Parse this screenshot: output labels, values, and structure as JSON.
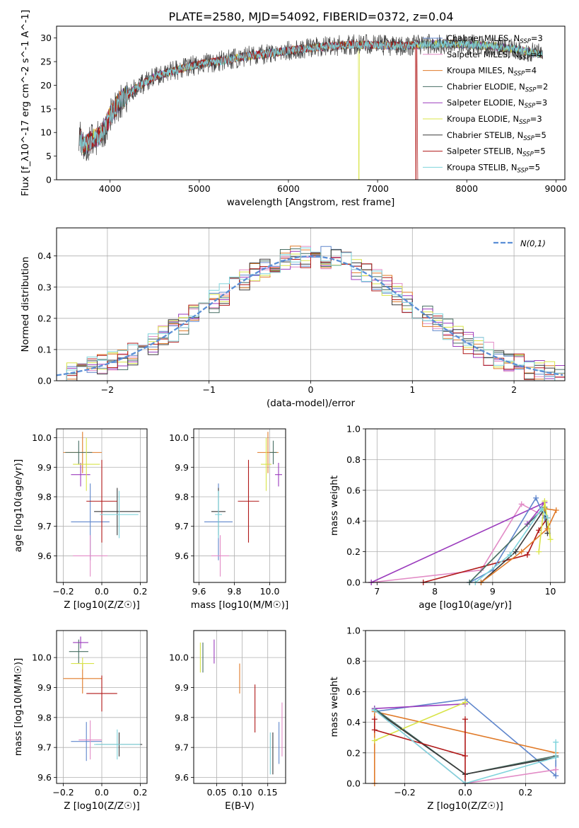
{
  "figure": {
    "title": "PLATE=2580, MJD=54092, FIBERID=0372, z=0.04"
  },
  "colors": {
    "Chabrier MILES": "#5f86cc",
    "Salpeter MILES": "#e28bc6",
    "Kroupa MILES": "#e07a28",
    "Chabrier ELODIE": "#476e63",
    "Salpeter ELODIE": "#9b3bbd",
    "Kroupa ELODIE": "#d8e448",
    "Chabrier STELIB": "#3a3a3a",
    "Salpeter STELIB": "#b01818",
    "Kroupa STELIB": "#7fd4dc",
    "normal": "#5b8fd6"
  },
  "chart_data": [
    {
      "id": "spectrum",
      "type": "line",
      "xlabel": "wavelength [Angstrom, rest frame]",
      "ylabel": "Flux [f_λ10^-17 erg cm^-2 s^-1 A^-1]",
      "xlim": [
        3400,
        9100
      ],
      "ylim": [
        0,
        32.5
      ],
      "xticks": [
        4000,
        5000,
        6000,
        7000,
        8000,
        9000
      ],
      "yticks": [
        0,
        5,
        10,
        15,
        20,
        25,
        30
      ],
      "grid": false,
      "legend_position": "top-right",
      "series": [
        {
          "name": "Chabrier MILES",
          "sub": "SSP",
          "n": 3
        },
        {
          "name": "Salpeter MILES",
          "sub": "SSP",
          "n": 4
        },
        {
          "name": "Kroupa MILES",
          "sub": "SSP",
          "n": 4
        },
        {
          "name": "Chabrier ELODIE",
          "sub": "SSP",
          "n": 2
        },
        {
          "name": "Salpeter ELODIE",
          "sub": "SSP",
          "n": 3
        },
        {
          "name": "Kroupa ELODIE",
          "sub": "SSP",
          "n": 3
        },
        {
          "name": "Chabrier STELIB",
          "sub": "SSP",
          "n": 5
        },
        {
          "name": "Salpeter STELIB",
          "sub": "SSP",
          "n": 5
        },
        {
          "name": "Kroupa STELIB",
          "sub": "SSP",
          "n": 5
        }
      ],
      "continuum": {
        "x": [
          3650,
          3700,
          3800,
          3900,
          4000,
          4100,
          4300,
          4500,
          4700,
          5000,
          5200,
          5500,
          5800,
          6000,
          6300,
          6500,
          6700,
          7000,
          7300,
          7500,
          7800,
          8200,
          8500,
          8850
        ],
        "y": [
          10,
          7,
          8.5,
          9.5,
          13.5,
          16.5,
          19.5,
          21.8,
          23,
          24.5,
          25,
          26,
          26.8,
          27.3,
          28,
          28.3,
          28.6,
          28.5,
          28.3,
          28.6,
          28.8,
          28.4,
          27.8,
          26.5
        ]
      },
      "drops": [
        {
          "series": "Kroupa ELODIE",
          "x": 6790,
          "to": 0
        },
        {
          "series": "Salpeter STELIB",
          "x": 7430,
          "to": 0
        }
      ]
    },
    {
      "id": "residuals",
      "type": "line",
      "xlabel": "(data-model)/error",
      "ylabel": "Normed distribution",
      "xlim": [
        -2.5,
        2.5
      ],
      "ylim": [
        0,
        0.49
      ],
      "xticks": [
        -2,
        -1,
        0,
        1,
        2
      ],
      "yticks": [
        0.0,
        0.1,
        0.2,
        0.3,
        0.4
      ],
      "grid": true,
      "legend_position": "top-right",
      "legend": "N(0,1)",
      "bin_width": 0.1
    },
    {
      "id": "age_vs_Z",
      "type": "scatter",
      "xlabel": "Z [log10(Z/Z☉)]",
      "ylabel": "age  [log10(age/yr)]",
      "xlim": [
        -0.235,
        0.235
      ],
      "ylim": [
        9.51,
        10.03
      ],
      "xticks": [
        -0.2,
        0.0,
        0.2
      ],
      "yticks": [
        9.6,
        9.7,
        9.8,
        9.9,
        10.0
      ],
      "grid": true,
      "points": [
        {
          "series": "Chabrier MILES",
          "x": -0.06,
          "xerr": 0.1,
          "y": 9.715,
          "yerr": 0.13
        },
        {
          "series": "Salpeter MILES",
          "x": -0.06,
          "xerr": 0.09,
          "y": 9.6,
          "yerr": 0.07
        },
        {
          "series": "Kroupa MILES",
          "x": -0.1,
          "xerr": 0.1,
          "y": 9.95,
          "yerr": 0.07
        },
        {
          "series": "Chabrier ELODIE",
          "x": -0.12,
          "xerr": 0.07,
          "y": 9.95,
          "yerr": 0.04
        },
        {
          "series": "Salpeter ELODIE",
          "x": -0.11,
          "xerr": 0.05,
          "y": 9.875,
          "yerr": 0.04
        },
        {
          "series": "Kroupa ELODIE",
          "x": -0.08,
          "xerr": 0.07,
          "y": 9.91,
          "yerr": 0.09
        },
        {
          "series": "Chabrier STELIB",
          "x": 0.08,
          "xerr": 0.12,
          "y": 9.75,
          "yerr": 0.08
        },
        {
          "series": "Salpeter STELIB",
          "x": 0.0,
          "xerr": 0.08,
          "y": 9.785,
          "yerr": 0.14
        },
        {
          "series": "Kroupa STELIB",
          "x": 0.09,
          "xerr": 0.1,
          "y": 9.74,
          "yerr": 0.08
        }
      ]
    },
    {
      "id": "age_vs_mass",
      "type": "scatter",
      "xlabel": "mass [log10(M/M☉)]",
      "ylabel": "",
      "xlim": [
        9.57,
        10.09
      ],
      "ylim": [
        9.51,
        10.03
      ],
      "xticks": [
        9.6,
        9.8,
        10.0
      ],
      "yticks": [
        9.6,
        9.7,
        9.8,
        9.9,
        10.0
      ],
      "grid": true,
      "points": [
        {
          "series": "Chabrier MILES",
          "x": 9.71,
          "xerr": 0.08,
          "y": 9.715,
          "yerr": 0.13
        },
        {
          "series": "Salpeter MILES",
          "x": 9.72,
          "xerr": 0.05,
          "y": 9.6,
          "yerr": 0.07
        },
        {
          "series": "Kroupa MILES",
          "x": 9.99,
          "xerr": 0.06,
          "y": 9.95,
          "yerr": 0.07
        },
        {
          "series": "Chabrier ELODIE",
          "x": 10.02,
          "xerr": 0.02,
          "y": 9.95,
          "yerr": 0.04
        },
        {
          "series": "Salpeter ELODIE",
          "x": 10.05,
          "xerr": 0.02,
          "y": 9.875,
          "yerr": 0.04
        },
        {
          "series": "Kroupa ELODIE",
          "x": 9.98,
          "xerr": 0.03,
          "y": 9.91,
          "yerr": 0.09
        },
        {
          "series": "Chabrier STELIB",
          "x": 9.71,
          "xerr": 0.04,
          "y": 9.75,
          "yerr": 0.08
        },
        {
          "series": "Salpeter STELIB",
          "x": 9.88,
          "xerr": 0.06,
          "y": 9.785,
          "yerr": 0.14
        },
        {
          "series": "Kroupa STELIB",
          "x": 9.71,
          "xerr": 0.02,
          "y": 9.74,
          "yerr": 0.08
        }
      ]
    },
    {
      "id": "weight_vs_age",
      "type": "line",
      "xlabel": "age  [log10(age/yr)]",
      "ylabel": "mass weight",
      "xlim": [
        6.8,
        10.25
      ],
      "ylim": [
        0,
        1.0
      ],
      "xticks": [
        7,
        8,
        9,
        10
      ],
      "yticks": [
        0.0,
        0.2,
        0.4,
        0.6,
        0.8,
        1.0
      ],
      "grid": true,
      "series": [
        {
          "name": "Salpeter MILES",
          "x": [
            6.9,
            8.8,
            9.5,
            9.95
          ],
          "y": [
            0.0,
            0.08,
            0.51,
            0.42
          ]
        },
        {
          "name": "Salpeter ELODIE",
          "x": [
            6.9,
            9.9,
            9.6
          ],
          "y": [
            0.0,
            0.52,
            0.38
          ]
        },
        {
          "name": "Salpeter STELIB",
          "x": [
            7.8,
            9.6,
            9.8,
            9.95
          ],
          "y": [
            0.0,
            0.18,
            0.34,
            0.42
          ]
        },
        {
          "name": "Chabrier MILES",
          "x": [
            8.6,
            9.0,
            9.75,
            9.9
          ],
          "y": [
            0.0,
            0.08,
            0.55,
            0.42
          ]
        },
        {
          "name": "Chabrier ELODIE",
          "x": [
            8.6,
            9.9
          ],
          "y": [
            0.0,
            0.49
          ]
        },
        {
          "name": "Chabrier STELIB",
          "x": [
            8.8,
            9.4,
            9.9,
            9.95
          ],
          "y": [
            0.0,
            0.2,
            0.48,
            0.32
          ]
        },
        {
          "name": "Kroupa MILES",
          "x": [
            8.8,
            9.5,
            9.95,
            10.1,
            9.9
          ],
          "y": [
            0.0,
            0.2,
            0.35,
            0.47,
            0.48
          ]
        },
        {
          "name": "Kroupa ELODIE",
          "x": [
            9.8,
            9.9,
            10.0,
            9.95
          ],
          "y": [
            0.2,
            0.53,
            0.28,
            0.42
          ]
        },
        {
          "name": "Kroupa STELIB",
          "x": [
            8.7,
            9.3,
            9.85,
            9.95
          ],
          "y": [
            0.0,
            0.18,
            0.48,
            0.42
          ]
        }
      ]
    },
    {
      "id": "mass_vs_Z",
      "type": "scatter",
      "xlabel": "Z [log10(Z/Z☉)]",
      "ylabel": "mass [log10(M/M☉)]",
      "xlim": [
        -0.235,
        0.235
      ],
      "ylim": [
        9.58,
        10.09
      ],
      "xticks": [
        -0.2,
        0.0,
        0.2
      ],
      "yticks": [
        9.6,
        9.7,
        9.8,
        9.9,
        10.0
      ],
      "grid": true,
      "points": [
        {
          "series": "Chabrier MILES",
          "x": -0.08,
          "xerr": 0.08,
          "y": 9.72,
          "yerr": 0.065
        },
        {
          "series": "Salpeter MILES",
          "x": -0.06,
          "xerr": 0.06,
          "y": 9.725,
          "yerr": 0.065
        },
        {
          "series": "Kroupa MILES",
          "x": -0.1,
          "xerr": 0.1,
          "y": 9.93,
          "yerr": 0.05
        },
        {
          "series": "Chabrier ELODIE",
          "x": -0.12,
          "xerr": 0.05,
          "y": 10.02,
          "yerr": 0.04
        },
        {
          "series": "Salpeter ELODIE",
          "x": -0.11,
          "xerr": 0.04,
          "y": 10.05,
          "yerr": 0.02
        },
        {
          "series": "Kroupa ELODIE",
          "x": -0.1,
          "xerr": 0.06,
          "y": 9.98,
          "yerr": 0.02
        },
        {
          "series": "Chabrier STELIB",
          "x": 0.09,
          "xerr": 0.12,
          "y": 9.71,
          "yerr": 0.04
        },
        {
          "series": "Salpeter STELIB",
          "x": 0.0,
          "xerr": 0.08,
          "y": 9.88,
          "yerr": 0.06
        },
        {
          "series": "Kroupa STELIB",
          "x": 0.08,
          "xerr": 0.12,
          "y": 9.71,
          "yerr": 0.05
        }
      ]
    },
    {
      "id": "ebv",
      "type": "scatter",
      "xlabel": "E(B-V)",
      "ylabel": "",
      "xlim": [
        0.005,
        0.185
      ],
      "ylim": [
        9.58,
        10.09
      ],
      "xticks": [
        0.05,
        0.1,
        0.15
      ],
      "yticks": [
        9.6,
        9.7,
        9.8,
        9.9,
        10.0
      ],
      "grid": true,
      "points": [
        {
          "series": "Chabrier MILES",
          "x": 0.172,
          "y": 9.715,
          "yerr": 0.07
        },
        {
          "series": "Salpeter MILES",
          "x": 0.178,
          "y": 9.76,
          "yerr": 0.09
        },
        {
          "series": "Kroupa MILES",
          "x": 0.095,
          "y": 9.93,
          "yerr": 0.05
        },
        {
          "series": "Chabrier ELODIE",
          "x": 0.023,
          "y": 10.0,
          "yerr": 0.05
        },
        {
          "series": "Salpeter ELODIE",
          "x": 0.045,
          "y": 10.02,
          "yerr": 0.04
        },
        {
          "series": "Kroupa ELODIE",
          "x": 0.018,
          "y": 10.0,
          "yerr": 0.05
        },
        {
          "series": "Chabrier STELIB",
          "x": 0.16,
          "y": 9.68,
          "yerr": 0.07
        },
        {
          "series": "Salpeter STELIB",
          "x": 0.125,
          "y": 9.83,
          "yerr": 0.08
        },
        {
          "series": "Kroupa STELIB",
          "x": 0.155,
          "y": 9.68,
          "yerr": 0.07
        }
      ]
    },
    {
      "id": "weight_vs_Z",
      "type": "line",
      "xlabel": "Z [log10(Z/Z☉)]",
      "ylabel": "mass weight",
      "xlim": [
        -0.33,
        0.33
      ],
      "ylim": [
        0,
        1.0
      ],
      "xticks": [
        -0.2,
        0.0,
        0.2
      ],
      "yticks": [
        0.0,
        0.2,
        0.4,
        0.6,
        0.8,
        1.0
      ],
      "grid": true,
      "series": [
        {
          "name": "Chabrier MILES",
          "x": [
            -0.3,
            0.0,
            0.3,
            0.3
          ],
          "y": [
            0.47,
            0.55,
            0.05,
            0.18
          ]
        },
        {
          "name": "Salpeter MILES",
          "x": [
            -0.3,
            0.0,
            0.3
          ],
          "y": [
            0.48,
            0.0,
            0.09
          ]
        },
        {
          "name": "Kroupa MILES",
          "x": [
            -0.3,
            -0.3,
            0.3
          ],
          "y": [
            0.0,
            0.47,
            0.2
          ]
        },
        {
          "name": "Chabrier ELODIE",
          "x": [
            -0.3,
            0.0,
            0.3
          ],
          "y": [
            0.49,
            0.06,
            0.18
          ]
        },
        {
          "name": "Salpeter ELODIE",
          "x": [
            -0.3,
            0.0
          ],
          "y": [
            0.49,
            0.52
          ]
        },
        {
          "name": "Kroupa ELODIE",
          "x": [
            -0.3,
            0.0
          ],
          "y": [
            0.28,
            0.53
          ]
        },
        {
          "name": "Chabrier STELIB",
          "x": [
            -0.3,
            0.0,
            0.3
          ],
          "y": [
            0.48,
            0.06,
            0.17
          ]
        },
        {
          "name": "Salpeter STELIB",
          "x": [
            -0.3,
            -0.3,
            0.0,
            0.0,
            0.0
          ],
          "y": [
            0.42,
            0.35,
            0.18,
            0.0,
            0.42
          ]
        },
        {
          "name": "Kroupa STELIB",
          "x": [
            -0.3,
            0.0,
            0.3,
            0.3
          ],
          "y": [
            0.48,
            0.0,
            0.17,
            0.27
          ]
        }
      ]
    }
  ]
}
